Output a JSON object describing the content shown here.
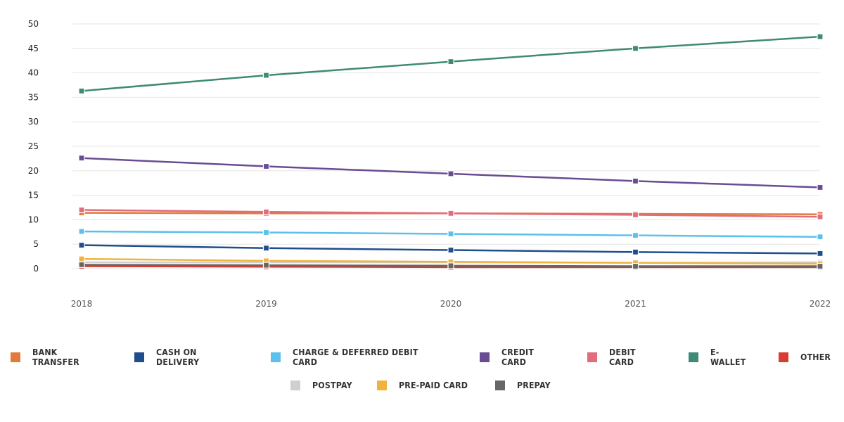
{
  "chart_data": {
    "type": "line",
    "title": "",
    "xlabel": "",
    "ylabel": "",
    "x": [
      "2018",
      "2019",
      "2020",
      "2021",
      "2022"
    ],
    "ylim": [
      0,
      50
    ],
    "y_ticks": [
      "0",
      "5",
      "10",
      "15",
      "20",
      "25",
      "30",
      "35",
      "40",
      "45",
      "50"
    ],
    "grid": true,
    "legend_position": "bottom",
    "series": [
      {
        "name": "BANK TRANSFER",
        "color": "#e07b3c",
        "values": [
          11.4,
          11.3,
          11.3,
          11.2,
          11.1
        ]
      },
      {
        "name": "CASH ON DELIVERY",
        "color": "#1f4e8c",
        "values": [
          4.8,
          4.2,
          3.8,
          3.4,
          3.1
        ]
      },
      {
        "name": "CHARGE & DEFERRED DEBIT CARD",
        "color": "#5bc0eb",
        "values": [
          7.6,
          7.4,
          7.1,
          6.8,
          6.5
        ]
      },
      {
        "name": "CREDIT CARD",
        "color": "#6a4c93",
        "values": [
          22.6,
          20.9,
          19.4,
          17.9,
          16.6
        ]
      },
      {
        "name": "DEBIT CARD",
        "color": "#e06c7c",
        "values": [
          12.0,
          11.6,
          11.3,
          11.0,
          10.6
        ]
      },
      {
        "name": "E-WALLET",
        "color": "#3e8a76",
        "values": [
          36.3,
          39.5,
          42.3,
          45.0,
          47.4
        ]
      },
      {
        "name": "OTHER",
        "color": "#d93a32",
        "values": [
          0.5,
          0.4,
          0.3,
          0.3,
          0.3
        ]
      },
      {
        "name": "POSTPAY",
        "color": "#cfcfcf",
        "values": [
          1.3,
          1.3,
          1.3,
          1.2,
          1.3
        ]
      },
      {
        "name": "PRE-PAID CARD",
        "color": "#f2b33d",
        "values": [
          2.0,
          1.6,
          1.4,
          1.2,
          1.0
        ]
      },
      {
        "name": "PREPAY",
        "color": "#666666",
        "values": [
          0.8,
          0.7,
          0.6,
          0.5,
          0.5
        ]
      }
    ]
  },
  "legend": {
    "row1": [
      {
        "label": "BANK TRANSFER",
        "color": "#e07b3c"
      },
      {
        "label": "CASH ON DELIVERY",
        "color": "#1f4e8c"
      },
      {
        "label": "CHARGE & DEFERRED DEBIT CARD",
        "color": "#5bc0eb"
      },
      {
        "label": "CREDIT CARD",
        "color": "#6a4c93"
      },
      {
        "label": "DEBIT CARD",
        "color": "#e06c7c"
      },
      {
        "label": "E-WALLET",
        "color": "#3e8a76"
      },
      {
        "label": "OTHER",
        "color": "#d93a32"
      }
    ],
    "row2": [
      {
        "label": "POSTPAY",
        "color": "#cfcfcf"
      },
      {
        "label": "PRE-PAID CARD",
        "color": "#f2b33d"
      },
      {
        "label": "PREPAY",
        "color": "#666666"
      }
    ]
  }
}
